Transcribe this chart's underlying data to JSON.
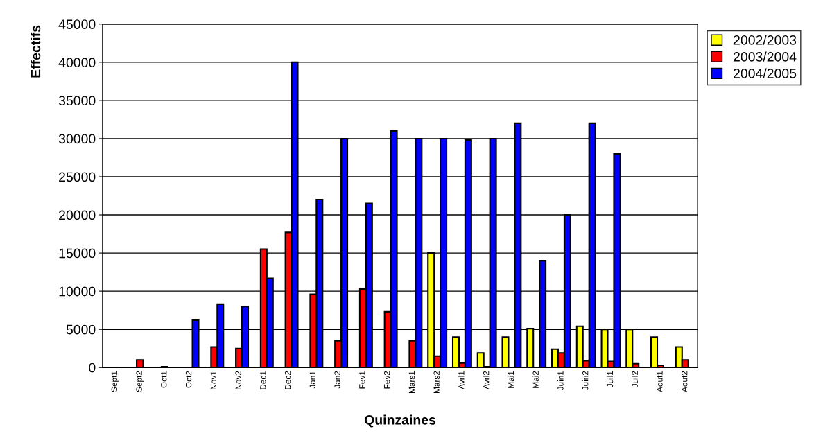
{
  "chart_data": {
    "type": "bar",
    "xlabel": "Quinzaines",
    "ylabel": "Effectifs",
    "categories": [
      "Sept1",
      "Sept2",
      "Oct1",
      "Oct2",
      "Nov1",
      "Nov2",
      "Dec1",
      "Dec2",
      "Jan1",
      "Jan2",
      "Fev1",
      "Fev2",
      "Mars1",
      "Mars2",
      "Avrl1",
      "Avrl2",
      "Mai1",
      "Mai2",
      "Juin1",
      "Juin2",
      "Juil1",
      "Juil2",
      "Aout1",
      "Aout2"
    ],
    "series": [
      {
        "name": "2002/2003",
        "color": "#ffff00",
        "values": [
          null,
          null,
          null,
          null,
          null,
          null,
          null,
          null,
          null,
          null,
          null,
          null,
          null,
          15000,
          4000,
          1900,
          4000,
          5100,
          2400,
          5400,
          5000,
          5000,
          4000,
          2700
        ]
      },
      {
        "name": "2003/2004",
        "color": "#ff0000",
        "values": [
          null,
          1000,
          100,
          null,
          2700,
          2500,
          15500,
          17700,
          9600,
          3500,
          10300,
          7300,
          3500,
          1500,
          600,
          100,
          null,
          null,
          1900,
          900,
          800,
          500,
          300,
          1000
        ]
      },
      {
        "name": "2004/2005",
        "color": "#0000ff",
        "values": [
          null,
          null,
          null,
          6200,
          8300,
          8000,
          11700,
          40000,
          22000,
          30000,
          21500,
          31000,
          30000,
          30000,
          29800,
          30000,
          32000,
          14000,
          20000,
          32000,
          28000,
          null,
          null,
          null
        ]
      }
    ],
    "ylim": [
      0,
      45000
    ],
    "yticks": [
      0,
      5000,
      10000,
      15000,
      20000,
      25000,
      30000,
      35000,
      40000,
      45000
    ],
    "grid": "y",
    "legend": "top right"
  }
}
